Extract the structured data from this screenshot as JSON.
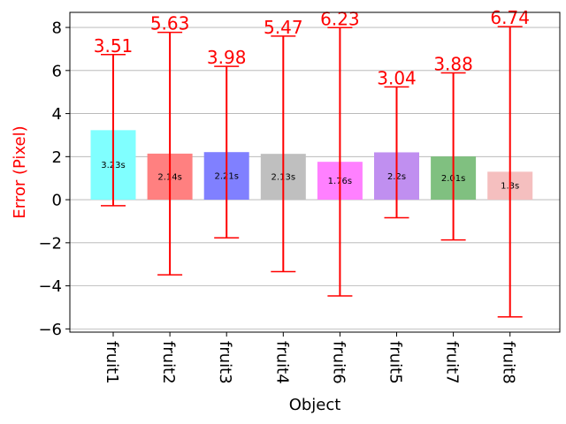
{
  "chart_data": {
    "type": "bar",
    "xlabel": "Object",
    "ylabel": "Error (Pixel)",
    "ylim": [
      -6.15,
      8.7
    ],
    "yticks": [
      -6,
      -4,
      -2,
      0,
      2,
      4,
      6,
      8
    ],
    "ytick_labels": [
      "−6",
      "−4",
      "−2",
      "0",
      "2",
      "4",
      "6",
      "8"
    ],
    "grid": "horizontal",
    "categories": [
      "fruit1",
      "fruit2",
      "fruit3",
      "fruit4",
      "fruit6",
      "fruit5",
      "fruit7",
      "fruit8"
    ],
    "values": [
      3.23,
      2.14,
      2.21,
      2.13,
      1.76,
      2.2,
      2.01,
      1.3
    ],
    "bar_labels": [
      "3.23s",
      "2.14s",
      "2.21s",
      "2.13s",
      "1.76s",
      "2.2s",
      "2.01s",
      "1.3s"
    ],
    "bar_colors": [
      "#80ffff",
      "#ff8080",
      "#8080ff",
      "#bfbfbf",
      "#ff80ff",
      "#c08ff0",
      "#80c080",
      "#f5bfbf"
    ],
    "error_center": [
      3.23,
      2.14,
      2.21,
      2.13,
      1.76,
      2.2,
      2.01,
      1.3
    ],
    "error_size": [
      3.51,
      5.63,
      3.98,
      5.47,
      6.23,
      3.04,
      3.88,
      6.74
    ],
    "error_labels": [
      "3.51",
      "5.63",
      "3.98",
      "5.47",
      "6.23",
      "3.04",
      "3.88",
      "6.74"
    ],
    "error_color": "#ff0000",
    "ylabel_color": "#ff0000"
  }
}
